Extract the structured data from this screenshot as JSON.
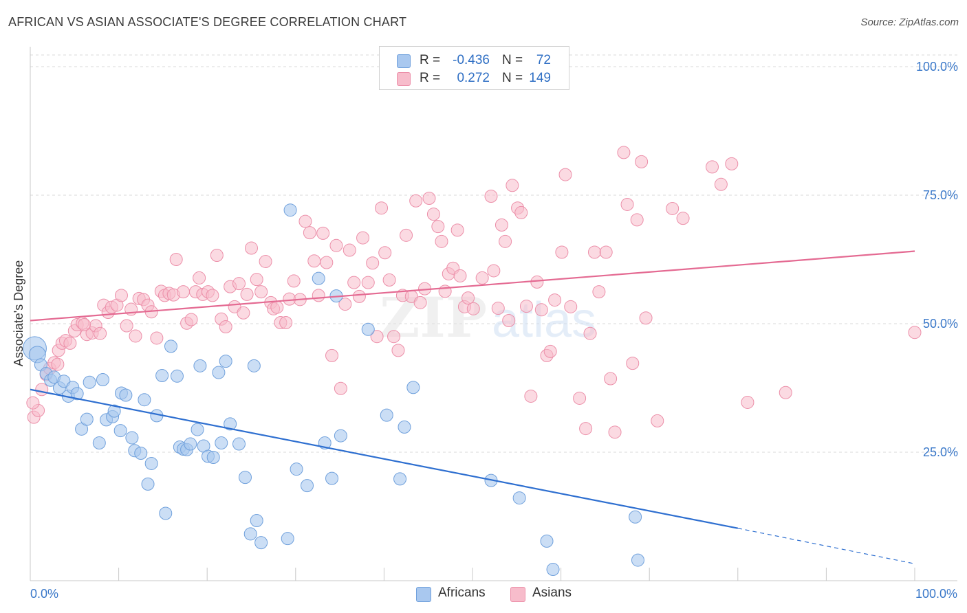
{
  "title": "AFRICAN VS ASIAN ASSOCIATE'S DEGREE CORRELATION CHART",
  "source": "Source: ZipAtlas.com",
  "colors": {
    "africans_fill": "#a9c8ef",
    "africans_stroke": "#6fa0dc",
    "africans_line": "#2e6fd0",
    "asians_fill": "#f7bccb",
    "asians_stroke": "#ec8fa9",
    "asians_line": "#e46a92",
    "tick_text": "#3a78c9",
    "grid": "#d8d8d8"
  },
  "legend": {
    "rows": [
      {
        "r_label": "R =",
        "r_value": "-0.436",
        "n_label": "N =",
        "n_value": "72"
      },
      {
        "r_label": "R =",
        "r_value": "0.272",
        "n_label": "N =",
        "n_value": "149"
      }
    ]
  },
  "bottom_legend": [
    "Africans",
    "Asians"
  ],
  "chart_data": {
    "type": "scatter",
    "title": "AFRICAN VS ASIAN ASSOCIATE'S DEGREE CORRELATION CHART",
    "xlabel": "",
    "ylabel": "Associate's Degree",
    "xlim": [
      0,
      100
    ],
    "ylim": [
      0,
      100
    ],
    "x_tick_labels": [
      "0.0%",
      "100.0%"
    ],
    "y_tick_labels": [
      "100.0%",
      "75.0%",
      "50.0%",
      "25.0%"
    ],
    "y_ticks": [
      100,
      75,
      50,
      25
    ],
    "grid": true,
    "legend_position": "top-center",
    "watermark": "ZIPatlas",
    "series": [
      {
        "name": "Africans",
        "r": -0.436,
        "n": 72,
        "trend": {
          "x0": 0,
          "y0": 37.2,
          "x1": 80,
          "y1": 10.2,
          "dashed_to_x": 100,
          "dashed_to_y": 3.3
        },
        "points": [
          [
            0.5,
            45.2
          ],
          [
            0.8,
            44
          ],
          [
            1.2,
            42
          ],
          [
            1.8,
            40.3
          ],
          [
            2.3,
            39
          ],
          [
            2.7,
            39.6
          ],
          [
            3.3,
            37.5
          ],
          [
            3.8,
            38.8
          ],
          [
            4.3,
            35.9
          ],
          [
            4.8,
            37.6
          ],
          [
            5.3,
            36.4
          ],
          [
            5.8,
            29.5
          ],
          [
            6.4,
            31.4
          ],
          [
            6.7,
            38.6
          ],
          [
            7.8,
            26.8
          ],
          [
            8.2,
            39.1
          ],
          [
            8.6,
            31.3
          ],
          [
            9.3,
            31.9
          ],
          [
            9.5,
            33
          ],
          [
            10.3,
            36.5
          ],
          [
            10.2,
            29.2
          ],
          [
            10.8,
            36.1
          ],
          [
            11.5,
            27.8
          ],
          [
            11.8,
            25.3
          ],
          [
            12.5,
            24.8
          ],
          [
            12.9,
            35.2
          ],
          [
            13.3,
            18.8
          ],
          [
            13.7,
            22.8
          ],
          [
            14.3,
            32.1
          ],
          [
            14.9,
            39.9
          ],
          [
            15.3,
            13.1
          ],
          [
            15.9,
            45.6
          ],
          [
            16.6,
            39.8
          ],
          [
            16.9,
            26
          ],
          [
            17.3,
            25.6
          ],
          [
            17.7,
            25.5
          ],
          [
            18.1,
            26.6
          ],
          [
            18.9,
            29.4
          ],
          [
            19.2,
            41.8
          ],
          [
            19.6,
            26.2
          ],
          [
            20.1,
            24.2
          ],
          [
            20.7,
            24
          ],
          [
            21.3,
            40.5
          ],
          [
            21.6,
            26.8
          ],
          [
            22.1,
            42.7
          ],
          [
            22.6,
            30.5
          ],
          [
            23.6,
            26.6
          ],
          [
            24.3,
            20.1
          ],
          [
            24.9,
            9.1
          ],
          [
            25.3,
            41.8
          ],
          [
            25.6,
            11.7
          ],
          [
            26.1,
            7.4
          ],
          [
            29.1,
            8.2
          ],
          [
            29.4,
            72.1
          ],
          [
            30.1,
            21.7
          ],
          [
            31.3,
            18.5
          ],
          [
            32.6,
            58.8
          ],
          [
            33.3,
            26.8
          ],
          [
            34.1,
            19.9
          ],
          [
            34.6,
            55.4
          ],
          [
            35.1,
            28.2
          ],
          [
            38.2,
            48.9
          ],
          [
            40.3,
            32.2
          ],
          [
            41.8,
            19.8
          ],
          [
            42.3,
            29.9
          ],
          [
            43.3,
            37.6
          ],
          [
            52.1,
            19.5
          ],
          [
            55.3,
            16.1
          ],
          [
            58.4,
            7.7
          ],
          [
            59.1,
            2.2
          ],
          [
            68.4,
            12.4
          ],
          [
            68.7,
            4
          ]
        ]
      },
      {
        "name": "Asians",
        "r": 0.272,
        "n": 149,
        "trend": {
          "x0": 0,
          "y0": 50.6,
          "x1": 100,
          "y1": 64.1
        },
        "points": [
          [
            0.4,
            31.8
          ],
          [
            0.9,
            33.1
          ],
          [
            1.3,
            37.2
          ],
          [
            1.8,
            40.1
          ],
          [
            2.2,
            41.3
          ],
          [
            2.7,
            42.4
          ],
          [
            3.2,
            44.8
          ],
          [
            3.6,
            46.2
          ],
          [
            4,
            46.7
          ],
          [
            4.5,
            46.2
          ],
          [
            5,
            48.6
          ],
          [
            5.3,
            49.8
          ],
          [
            5.9,
            50.1
          ],
          [
            6.4,
            47.9
          ],
          [
            7,
            48.2
          ],
          [
            7.4,
            49.6
          ],
          [
            7.9,
            48.1
          ],
          [
            8.3,
            53.6
          ],
          [
            8.8,
            52.2
          ],
          [
            9.2,
            53.2
          ],
          [
            9.8,
            53.6
          ],
          [
            10.3,
            55.5
          ],
          [
            10.9,
            49.6
          ],
          [
            11.4,
            52.8
          ],
          [
            11.9,
            47.6
          ],
          [
            12.3,
            54.9
          ],
          [
            12.8,
            54.7
          ],
          [
            13.3,
            53.6
          ],
          [
            13.7,
            52.3
          ],
          [
            14.3,
            47.2
          ],
          [
            14.8,
            56.3
          ],
          [
            15.2,
            55.5
          ],
          [
            15.7,
            55.9
          ],
          [
            16.2,
            55.6
          ],
          [
            16.5,
            62.5
          ],
          [
            17.3,
            56.2
          ],
          [
            17.7,
            50.1
          ],
          [
            18.2,
            50.8
          ],
          [
            18.7,
            56.2
          ],
          [
            19.1,
            58.9
          ],
          [
            19.5,
            55.7
          ],
          [
            20.1,
            56.2
          ],
          [
            20.6,
            55.5
          ],
          [
            21.1,
            63.3
          ],
          [
            21.6,
            50.9
          ],
          [
            22.1,
            49.4
          ],
          [
            22.6,
            57.2
          ],
          [
            23.1,
            53.3
          ],
          [
            23.6,
            57.8
          ],
          [
            24.1,
            52.1
          ],
          [
            24.5,
            55.7
          ],
          [
            25,
            64.7
          ],
          [
            25.6,
            58.6
          ],
          [
            26.1,
            56.2
          ],
          [
            26.6,
            62.1
          ],
          [
            27.2,
            54.1
          ],
          [
            27.5,
            52.9
          ],
          [
            27.9,
            53.2
          ],
          [
            28.3,
            50.2
          ],
          [
            28.9,
            50.2
          ],
          [
            29.3,
            54.8
          ],
          [
            29.8,
            58.3
          ],
          [
            30.5,
            54.7
          ],
          [
            31.1,
            69.9
          ],
          [
            31.6,
            67.7
          ],
          [
            32.1,
            62.2
          ],
          [
            32.6,
            55.5
          ],
          [
            33.1,
            67.6
          ],
          [
            33.5,
            61.9
          ],
          [
            34.1,
            43.8
          ],
          [
            34.6,
            65.2
          ],
          [
            35.1,
            37.4
          ],
          [
            35.6,
            53.8
          ],
          [
            36.1,
            64.3
          ],
          [
            36.6,
            58
          ],
          [
            37.2,
            55.3
          ],
          [
            37.6,
            66.7
          ],
          [
            38.2,
            58
          ],
          [
            38.7,
            61.8
          ],
          [
            39.2,
            47.5
          ],
          [
            39.7,
            72.5
          ],
          [
            40.1,
            63.8
          ],
          [
            40.6,
            58.5
          ],
          [
            41.1,
            47.5
          ],
          [
            41.6,
            44.8
          ],
          [
            42.1,
            55.5
          ],
          [
            42.5,
            67.2
          ],
          [
            43.1,
            55.3
          ],
          [
            43.6,
            73.9
          ],
          [
            44.1,
            54.1
          ],
          [
            44.6,
            56.8
          ],
          [
            45.1,
            74.4
          ],
          [
            45.6,
            71.3
          ],
          [
            46.1,
            68.9
          ],
          [
            46.5,
            66
          ],
          [
            46.9,
            56.3
          ],
          [
            47.3,
            59.7
          ],
          [
            47.8,
            60.8
          ],
          [
            48.3,
            68.2
          ],
          [
            48.6,
            59.3
          ],
          [
            49.1,
            53.3
          ],
          [
            49.5,
            55
          ],
          [
            50.1,
            52.9
          ],
          [
            51.1,
            58.9
          ],
          [
            52.1,
            74.8
          ],
          [
            52.4,
            60.3
          ],
          [
            52.9,
            53
          ],
          [
            53.3,
            69.2
          ],
          [
            53.7,
            66
          ],
          [
            54.1,
            50.6
          ],
          [
            54.5,
            76.9
          ],
          [
            55.1,
            72.5
          ],
          [
            55.5,
            71.6
          ],
          [
            56.1,
            53.4
          ],
          [
            56.6,
            35.9
          ],
          [
            57.3,
            58.1
          ],
          [
            57.8,
            52.7
          ],
          [
            58.4,
            43.8
          ],
          [
            58.8,
            44.6
          ],
          [
            59.3,
            54.6
          ],
          [
            60.1,
            63.9
          ],
          [
            60.5,
            79
          ],
          [
            61.1,
            53.3
          ],
          [
            62.1,
            35.5
          ],
          [
            62.8,
            29.6
          ],
          [
            63.3,
            48.1
          ],
          [
            63.8,
            63.9
          ],
          [
            64.3,
            56.2
          ],
          [
            65.1,
            63.9
          ],
          [
            65.6,
            39.3
          ],
          [
            66.1,
            28.9
          ],
          [
            67.1,
            83.3
          ],
          [
            67.5,
            73.2
          ],
          [
            68.1,
            42.3
          ],
          [
            68.6,
            70.2
          ],
          [
            69.1,
            81.5
          ],
          [
            69.6,
            51.1
          ],
          [
            70.9,
            31.1
          ],
          [
            72.6,
            72.4
          ],
          [
            73.8,
            70.5
          ],
          [
            77.1,
            80.5
          ],
          [
            78.1,
            77.1
          ],
          [
            79.3,
            81.1
          ],
          [
            81.1,
            34.7
          ],
          [
            85.4,
            36.6
          ],
          [
            100,
            48.3
          ],
          [
            0.3,
            34.6
          ],
          [
            3.1,
            42.1
          ],
          [
            6.1,
            49.8
          ]
        ]
      }
    ]
  }
}
